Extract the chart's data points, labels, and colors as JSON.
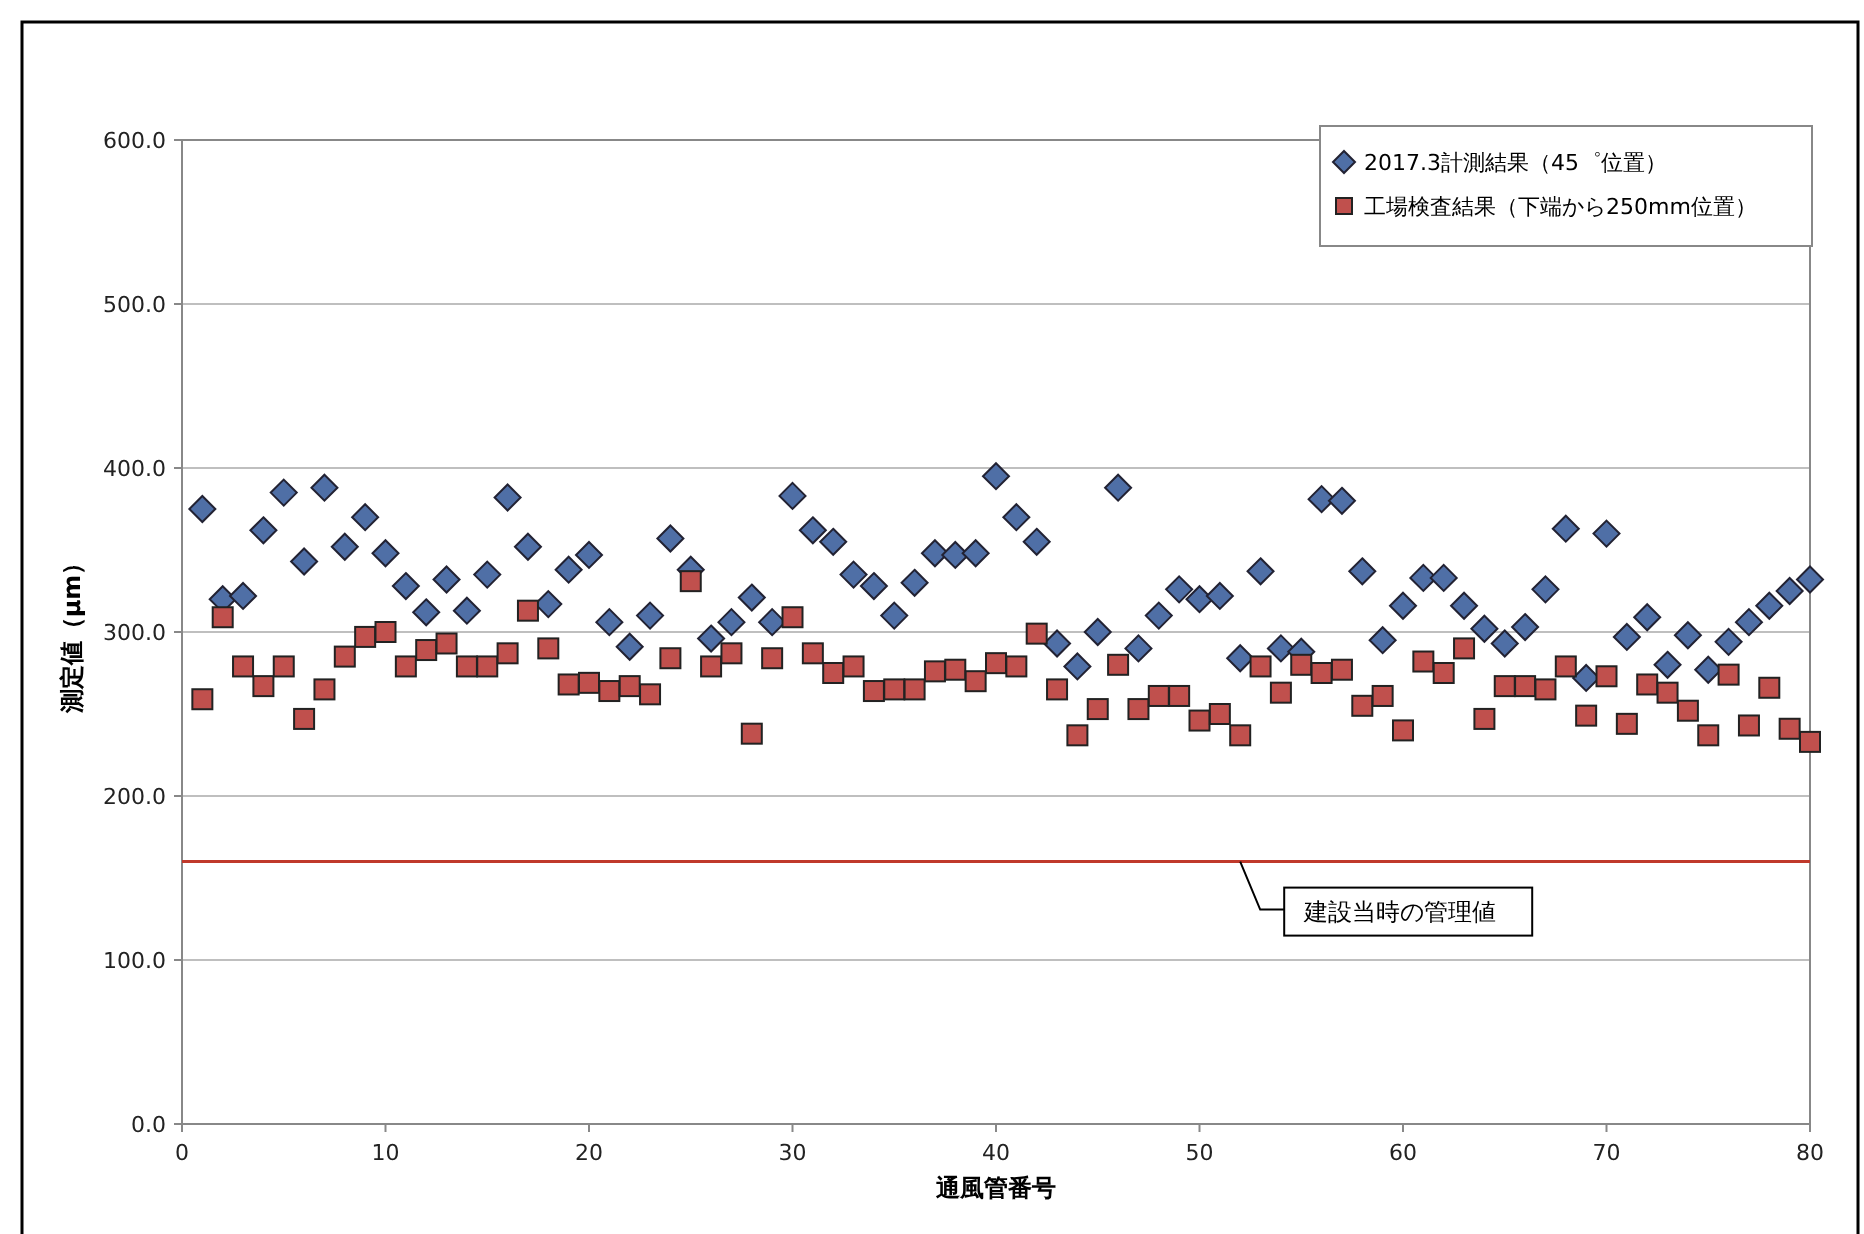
{
  "chart_data": {
    "type": "scatter",
    "xlabel": "通風管番号",
    "ylabel": "測定値（μm）",
    "xlim": [
      0,
      80
    ],
    "xticks": [
      0,
      10,
      20,
      30,
      40,
      50,
      60,
      70,
      80
    ],
    "ylim": [
      0,
      600
    ],
    "yticks": [
      {
        "value": 0,
        "label": "0.0"
      },
      {
        "value": 100,
        "label": "100.0"
      },
      {
        "value": 200,
        "label": "200.0"
      },
      {
        "value": 300,
        "label": "300.0"
      },
      {
        "value": 400,
        "label": "400.0"
      },
      {
        "value": 500,
        "label": "500.0"
      },
      {
        "value": 600,
        "label": "600.0"
      }
    ],
    "grid": "y",
    "legend": "top right",
    "x": [
      1,
      2,
      3,
      4,
      5,
      6,
      7,
      8,
      9,
      10,
      11,
      12,
      13,
      14,
      15,
      16,
      17,
      18,
      19,
      20,
      21,
      22,
      23,
      24,
      25,
      26,
      27,
      28,
      29,
      30,
      31,
      32,
      33,
      34,
      35,
      36,
      37,
      38,
      39,
      40,
      41,
      42,
      43,
      44,
      45,
      46,
      47,
      48,
      49,
      50,
      51,
      52,
      53,
      54,
      55,
      56,
      57,
      58,
      59,
      60,
      61,
      62,
      63,
      64,
      65,
      66,
      67,
      68,
      69,
      70,
      71,
      72,
      73,
      74,
      75,
      76,
      77,
      78,
      79,
      80
    ],
    "series": [
      {
        "name": "2017.3計測結果（45゜位置）",
        "color": "#4f6fa6",
        "marker": "diamond",
        "values": [
          375,
          320,
          322,
          362,
          385,
          343,
          388,
          352,
          370,
          348,
          328,
          312,
          332,
          313,
          335,
          382,
          352,
          317,
          338,
          347,
          306,
          291,
          310,
          357,
          338,
          296,
          306,
          321,
          306,
          383,
          362,
          355,
          335,
          328,
          310,
          330,
          348,
          347,
          348,
          395,
          370,
          355,
          293,
          279,
          300,
          388,
          290,
          310,
          326,
          320,
          322,
          284,
          337,
          290,
          288,
          381,
          380,
          337,
          295,
          316,
          333,
          333,
          316,
          302,
          293,
          303,
          326,
          363,
          272,
          360,
          297,
          309,
          280,
          298,
          277,
          294,
          306,
          316,
          325,
          332
        ]
      },
      {
        "name": "工場検査結果（下端から250mm位置）",
        "color": "#c0504d",
        "marker": "square",
        "values": [
          259,
          309,
          279,
          267,
          279,
          247,
          265,
          285,
          297,
          300,
          279,
          289,
          293,
          279,
          279,
          287,
          313,
          290,
          268,
          269,
          264,
          267,
          262,
          284,
          331,
          279,
          287,
          238,
          284,
          309,
          287,
          275,
          279,
          264,
          265,
          265,
          276,
          277,
          270,
          281,
          279,
          299,
          265,
          237,
          253,
          280,
          253,
          261,
          261,
          246,
          250,
          237,
          279,
          263,
          280,
          275,
          277,
          255,
          261,
          240,
          282,
          275,
          290,
          247,
          267,
          267,
          265,
          279,
          249,
          273,
          244,
          268,
          263,
          252,
          237,
          274,
          243,
          266,
          241,
          233
        ]
      }
    ],
    "ref_lines": [
      {
        "axis": "y",
        "value": 160,
        "label": "建設当時の管理値",
        "color": "#c0392b"
      }
    ]
  }
}
